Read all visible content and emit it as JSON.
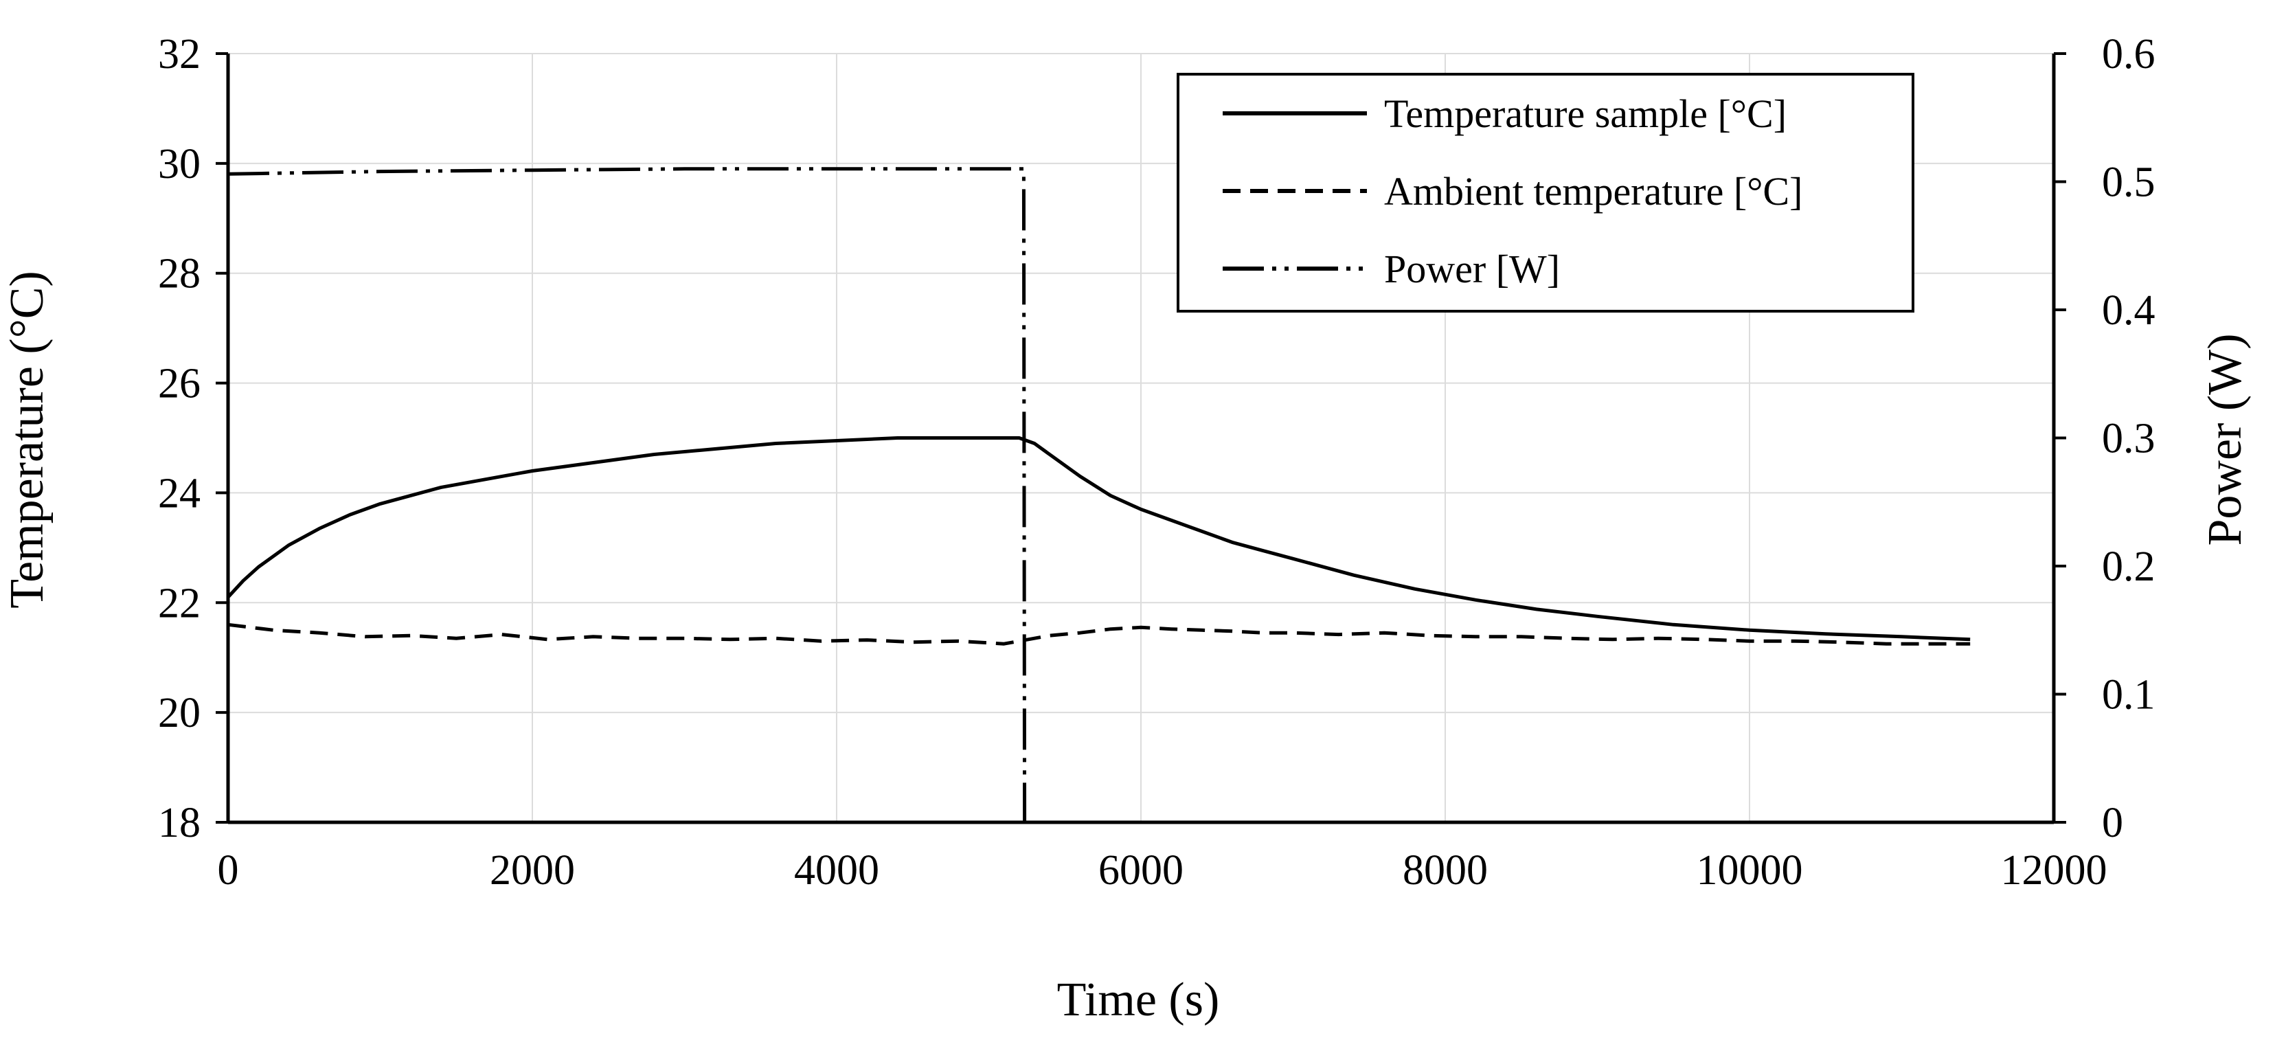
{
  "chart_data": {
    "type": "line",
    "title": "",
    "xlabel": "Time (s)",
    "ylabel_left": "Temperature (°C)",
    "ylabel_right": "Power (W)",
    "xlim": [
      0,
      12000
    ],
    "ylim_left": [
      18,
      32
    ],
    "ylim_right": [
      0,
      0.6
    ],
    "x_ticks": [
      "0",
      "2000",
      "4000",
      "6000",
      "8000",
      "10000",
      "12000"
    ],
    "y_left_ticks": [
      "18",
      "20",
      "22",
      "24",
      "26",
      "28",
      "30",
      "32"
    ],
    "y_right_ticks": [
      "0",
      "0.1",
      "0.2",
      "0.3",
      "0.4",
      "0.5",
      "0.6"
    ],
    "grid": true,
    "legend_position": "top-right",
    "series": [
      {
        "name": "Temperature sample [°C]",
        "axis": "left",
        "style": "solid",
        "x": [
          0,
          100,
          200,
          400,
          600,
          800,
          1000,
          1200,
          1400,
          1600,
          1800,
          2000,
          2400,
          2800,
          3200,
          3600,
          4000,
          4400,
          4800,
          5200,
          5300,
          5400,
          5600,
          5800,
          6000,
          6200,
          6400,
          6600,
          6800,
          7000,
          7400,
          7800,
          8200,
          8600,
          9000,
          9500,
          10000,
          10500,
          11000,
          11450
        ],
        "values": [
          22.1,
          22.4,
          22.65,
          23.05,
          23.35,
          23.6,
          23.8,
          23.95,
          24.1,
          24.2,
          24.3,
          24.4,
          24.55,
          24.7,
          24.8,
          24.9,
          24.95,
          25.0,
          25.0,
          25.0,
          24.9,
          24.7,
          24.3,
          23.95,
          23.7,
          23.5,
          23.3,
          23.1,
          22.95,
          22.8,
          22.5,
          22.25,
          22.05,
          21.88,
          21.75,
          21.6,
          21.5,
          21.43,
          21.38,
          21.33
        ]
      },
      {
        "name": "Ambient temperature [°C]",
        "axis": "left",
        "style": "dashed",
        "x": [
          0,
          300,
          600,
          900,
          1200,
          1500,
          1800,
          2100,
          2400,
          2700,
          3000,
          3300,
          3600,
          3900,
          4200,
          4500,
          4800,
          5100,
          5200,
          5400,
          5600,
          5800,
          6000,
          6200,
          6400,
          6600,
          6800,
          7000,
          7300,
          7600,
          7900,
          8200,
          8500,
          8800,
          9100,
          9400,
          9700,
          10000,
          10300,
          10600,
          10900,
          11200,
          11450
        ],
        "values": [
          21.6,
          21.5,
          21.45,
          21.38,
          21.4,
          21.35,
          21.42,
          21.33,
          21.38,
          21.35,
          21.35,
          21.33,
          21.35,
          21.3,
          21.32,
          21.28,
          21.3,
          21.25,
          21.3,
          21.4,
          21.45,
          21.52,
          21.55,
          21.52,
          21.5,
          21.48,
          21.45,
          21.45,
          21.42,
          21.45,
          21.4,
          21.38,
          21.38,
          21.35,
          21.33,
          21.35,
          21.33,
          21.3,
          21.3,
          21.28,
          21.25,
          21.25,
          21.25
        ]
      },
      {
        "name": "Power [W]",
        "axis": "right",
        "style": "dash-dot-dot",
        "x": [
          0,
          1000,
          2000,
          3000,
          4000,
          5000,
          5230,
          5235,
          6000,
          8000,
          10000,
          11450
        ],
        "values": [
          0.506,
          0.508,
          0.509,
          0.51,
          0.51,
          0.51,
          0.51,
          0.0,
          0.0,
          0.0,
          0.0,
          0.0
        ]
      }
    ]
  }
}
